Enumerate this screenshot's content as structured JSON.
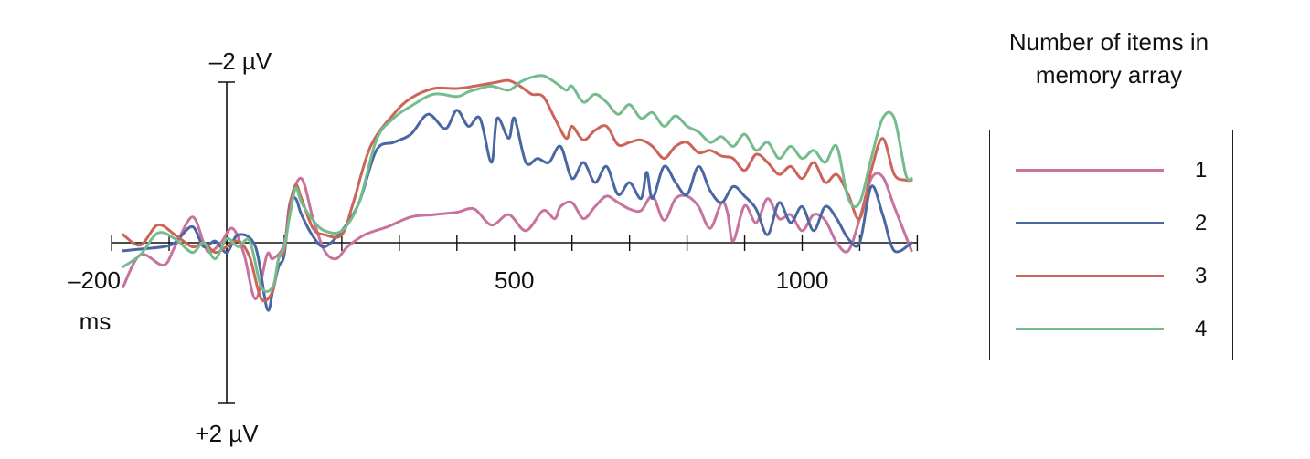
{
  "chart_data": {
    "type": "line",
    "x_start_label": "–200",
    "x_unit_label": "ms",
    "y_top_label": "–2 µV",
    "y_bottom_label": "+2 µV",
    "xlim": [
      -200,
      1200
    ],
    "ylim": [
      -2,
      2
    ],
    "y_inverted": true,
    "x_ticks": [
      -200,
      -100,
      0,
      100,
      200,
      300,
      400,
      500,
      600,
      700,
      800,
      900,
      1000,
      1100,
      1200
    ],
    "x_tick_labels": [
      {
        "x": 500,
        "label": "500"
      },
      {
        "x": 1000,
        "label": "1000"
      }
    ],
    "legend_title": "Number of items in memory array",
    "legend_position": "right",
    "grid": false,
    "series": [
      {
        "name": "1",
        "color": "#c8729e",
        "x": [
          -180,
          -150,
          -110,
          -90,
          -60,
          -40,
          -30,
          -10,
          10,
          30,
          50,
          70,
          80,
          100,
          110,
          130,
          150,
          170,
          190,
          210,
          240,
          280,
          320,
          360,
          400,
          430,
          460,
          490,
          520,
          550,
          570,
          580,
          600,
          620,
          640,
          660,
          680,
          700,
          720,
          740,
          760,
          780,
          800,
          820,
          840,
          860,
          870,
          880,
          900,
          920,
          940,
          960,
          980,
          1000,
          1020,
          1040,
          1060,
          1080,
          1100,
          1120,
          1140,
          1160,
          1190
        ],
        "y": [
          0.55,
          0.15,
          0.28,
          0.05,
          -0.32,
          0.0,
          0.12,
          0.0,
          -0.18,
          0.14,
          0.7,
          0.15,
          0.2,
          0.02,
          -0.5,
          -0.8,
          -0.3,
          0.1,
          0.2,
          0.05,
          -0.1,
          -0.2,
          -0.32,
          -0.35,
          -0.38,
          -0.42,
          -0.22,
          -0.35,
          -0.15,
          -0.4,
          -0.3,
          -0.45,
          -0.5,
          -0.3,
          -0.45,
          -0.58,
          -0.5,
          -0.42,
          -0.4,
          -0.58,
          -0.28,
          -0.55,
          -0.58,
          -0.45,
          -0.18,
          -0.5,
          -0.38,
          -0.02,
          -0.46,
          -0.25,
          -0.55,
          -0.3,
          -0.35,
          -0.15,
          -0.35,
          -0.28,
          0.0,
          0.1,
          -0.3,
          -0.8,
          -0.82,
          -0.45,
          0.1
        ]
      },
      {
        "name": "2",
        "color": "#4a67a4",
        "x": [
          -180,
          -150,
          -110,
          -90,
          -60,
          -40,
          -20,
          0,
          20,
          50,
          70,
          80,
          90,
          100,
          110,
          120,
          130,
          150,
          170,
          200,
          230,
          260,
          290,
          320,
          350,
          380,
          400,
          420,
          440,
          460,
          470,
          490,
          500,
          520,
          540,
          560,
          580,
          600,
          620,
          640,
          660,
          680,
          700,
          720,
          730,
          740,
          760,
          780,
          800,
          820,
          840,
          860,
          880,
          900,
          920,
          940,
          960,
          980,
          1000,
          1020,
          1040,
          1060,
          1080,
          1100,
          1120,
          1140,
          1160,
          1190
        ],
        "y": [
          0.1,
          0.08,
          0.05,
          0.0,
          -0.2,
          0.05,
          -0.02,
          0.12,
          -0.1,
          0.05,
          0.82,
          0.6,
          0.3,
          0.15,
          -0.48,
          -0.55,
          -0.35,
          -0.08,
          0.05,
          -0.15,
          -0.5,
          -1.15,
          -1.25,
          -1.35,
          -1.6,
          -1.42,
          -1.65,
          -1.45,
          -1.55,
          -1.0,
          -1.55,
          -1.3,
          -1.55,
          -1.0,
          -1.05,
          -1.0,
          -1.2,
          -0.8,
          -1.0,
          -0.75,
          -0.95,
          -0.6,
          -0.75,
          -0.55,
          -0.88,
          -0.55,
          -0.95,
          -0.75,
          -0.6,
          -0.95,
          -0.65,
          -0.5,
          -0.7,
          -0.58,
          -0.42,
          -0.1,
          -0.5,
          -0.25,
          -0.45,
          -0.15,
          -0.45,
          -0.3,
          -0.05,
          0.0,
          -0.7,
          -0.35,
          0.1,
          0.0
        ]
      },
      {
        "name": "3",
        "color": "#cc6457",
        "x": [
          -180,
          -150,
          -120,
          -90,
          -60,
          -40,
          -20,
          0,
          20,
          40,
          60,
          80,
          90,
          100,
          110,
          120,
          130,
          150,
          170,
          200,
          220,
          250,
          290,
          320,
          360,
          400,
          430,
          470,
          490,
          510,
          530,
          550,
          570,
          590,
          600,
          620,
          640,
          660,
          680,
          700,
          720,
          740,
          760,
          780,
          800,
          820,
          840,
          860,
          880,
          900,
          920,
          940,
          960,
          980,
          1000,
          1020,
          1040,
          1060,
          1080,
          1100,
          1120,
          1140,
          1160,
          1180,
          1190
        ],
        "y": [
          -0.1,
          0.03,
          -0.22,
          -0.1,
          0.05,
          0.0,
          0.12,
          0.05,
          -0.02,
          0.18,
          0.7,
          0.6,
          0.2,
          0.1,
          -0.45,
          -0.72,
          -0.55,
          -0.18,
          -0.1,
          -0.1,
          -0.5,
          -1.2,
          -1.6,
          -1.8,
          -1.92,
          -1.92,
          -1.95,
          -2.0,
          -2.02,
          -1.95,
          -1.85,
          -1.82,
          -1.55,
          -1.3,
          -1.45,
          -1.28,
          -1.4,
          -1.45,
          -1.22,
          -1.25,
          -1.28,
          -1.2,
          -1.05,
          -1.2,
          -1.25,
          -1.12,
          -1.15,
          -1.08,
          -1.05,
          -0.9,
          -1.1,
          -1.0,
          -0.85,
          -0.95,
          -0.8,
          -1.0,
          -0.75,
          -0.85,
          -0.6,
          -0.3,
          -0.9,
          -1.3,
          -0.85,
          -0.78,
          -0.78
        ]
      },
      {
        "name": "4",
        "color": "#74bc8e",
        "x": [
          -180,
          -150,
          -120,
          -90,
          -60,
          -40,
          -20,
          0,
          20,
          40,
          60,
          80,
          90,
          100,
          110,
          120,
          130,
          150,
          170,
          200,
          230,
          260,
          290,
          320,
          360,
          400,
          420,
          440,
          460,
          490,
          510,
          530,
          550,
          570,
          590,
          600,
          620,
          640,
          660,
          680,
          700,
          720,
          740,
          760,
          780,
          800,
          820,
          840,
          860,
          880,
          900,
          920,
          940,
          960,
          980,
          1000,
          1020,
          1040,
          1060,
          1080,
          1100,
          1120,
          1140,
          1160,
          1180,
          1190
        ],
        "y": [
          0.3,
          0.15,
          -0.12,
          -0.05,
          0.12,
          0.0,
          0.2,
          -0.05,
          0.05,
          -0.02,
          0.55,
          0.55,
          0.2,
          0.05,
          -0.35,
          -0.68,
          -0.5,
          -0.28,
          -0.15,
          -0.15,
          -0.5,
          -1.28,
          -1.55,
          -1.7,
          -1.85,
          -1.82,
          -1.88,
          -1.92,
          -1.95,
          -1.9,
          -2.0,
          -2.06,
          -2.08,
          -2.0,
          -1.9,
          -1.95,
          -1.75,
          -1.85,
          -1.75,
          -1.6,
          -1.72,
          -1.55,
          -1.62,
          -1.45,
          -1.58,
          -1.45,
          -1.38,
          -1.25,
          -1.32,
          -1.2,
          -1.35,
          -1.15,
          -1.25,
          -1.05,
          -1.2,
          -1.05,
          -1.15,
          -1.0,
          -1.2,
          -0.55,
          -0.5,
          -1.05,
          -1.55,
          -1.55,
          -0.85,
          -0.8
        ]
      }
    ]
  }
}
